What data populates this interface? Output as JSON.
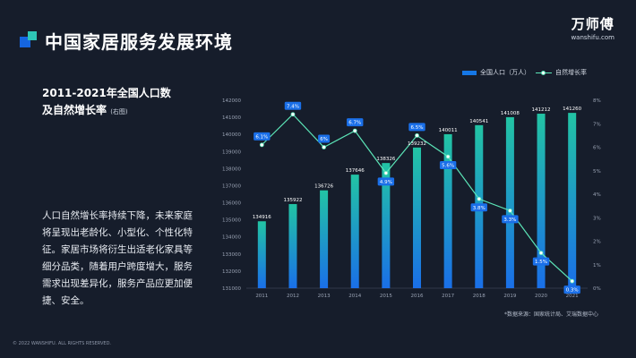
{
  "page_title": "中国家居服务发展环境",
  "brand": {
    "cn": "万师傅",
    "en": "wanshifu.com"
  },
  "subtitle": {
    "line1": "2011-2021年全国人口数",
    "line2": "及自然增长率",
    "note": "(右图)"
  },
  "body_text": "人口自然增长率持续下降，未来家庭将呈现出老龄化、小型化、个性化特征。家居市场将衍生出适老化家具等细分品类，随着用户跨度增大，服务需求出现差异化，服务产品应更加便捷、安全。",
  "legend": {
    "bar": "全国人口（万人）",
    "line": "自然增长率"
  },
  "source": "*数据来源：国家统计局、艾瑞数据中心",
  "copyright": "© 2022 WANSHIFU. ALL RIGHTS RESERVED.",
  "colors": {
    "bar_bottom": "#1a6fe8",
    "bar_top": "#22c4a4",
    "line": "#5ce6b8",
    "label_box": "#1a6fe8",
    "background": "#161d2b"
  },
  "chart_data": {
    "type": "bar",
    "categories": [
      "2011",
      "2012",
      "2013",
      "2014",
      "2015",
      "2016",
      "2017",
      "2018",
      "2019",
      "2020",
      "2021"
    ],
    "series": [
      {
        "name": "全国人口（万人）",
        "type": "bar",
        "axis": "left",
        "values": [
          134916,
          135922,
          136726,
          137646,
          138326,
          139232,
          140011,
          140541,
          141008,
          141212,
          141260
        ],
        "labels": [
          "134916",
          "135922",
          "136726",
          "137646",
          "138326",
          "139232",
          "140011",
          "140541",
          "141008",
          "141212",
          "141260"
        ]
      },
      {
        "name": "自然增长率",
        "type": "line",
        "axis": "right",
        "values": [
          6.1,
          7.4,
          6.0,
          6.7,
          4.9,
          6.5,
          5.6,
          3.8,
          3.3,
          1.5,
          0.3
        ],
        "labels": [
          "6.1%",
          "7.4%",
          "6%",
          "6.7%",
          "4.9%",
          "6.5%",
          "5.6%",
          "3.8%",
          "3.3%",
          "1.5%",
          "0.3%"
        ]
      }
    ],
    "y_left": {
      "lim": [
        131000,
        142000
      ],
      "ticks": [
        "131000",
        "132000",
        "133000",
        "134000",
        "135000",
        "136000",
        "137000",
        "138000",
        "139000",
        "140000",
        "141000",
        "142000"
      ]
    },
    "y_right": {
      "lim": [
        0,
        8
      ],
      "ticks": [
        "0%",
        "1%",
        "2%",
        "3%",
        "4%",
        "5%",
        "6%",
        "7%",
        "8%"
      ]
    },
    "grid": false,
    "legend_position": "top-right"
  }
}
